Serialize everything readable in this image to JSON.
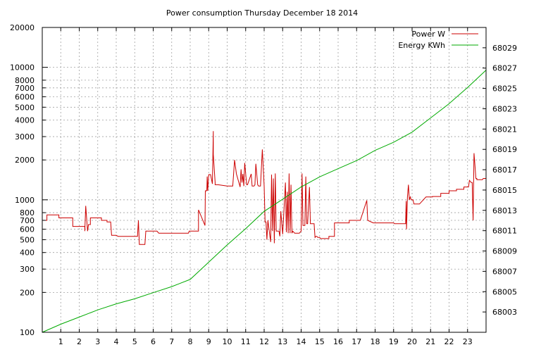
{
  "chart_data": {
    "type": "line",
    "title": "Power consumption Thursday December 18 2014",
    "xlabel": "",
    "ylabel": "",
    "xlim": [
      0,
      24
    ],
    "ylim": [
      100,
      20000
    ],
    "y_scale": "log",
    "y2lim": [
      68001,
      68031
    ],
    "grid": true,
    "legend_position": "top-right",
    "x_ticks": [
      1,
      2,
      3,
      4,
      5,
      6,
      7,
      8,
      9,
      10,
      11,
      12,
      13,
      14,
      15,
      16,
      17,
      18,
      19,
      20,
      21,
      22,
      23
    ],
    "x_tick_labels": [
      "1",
      "2",
      "3",
      "4",
      "5",
      "6",
      "7",
      "8",
      "9",
      "10",
      "11",
      "12",
      "13",
      "14",
      "15",
      "16",
      "17",
      "18",
      "19",
      "20",
      "21",
      "22",
      "23"
    ],
    "y_ticks": [
      100,
      200,
      300,
      400,
      500,
      600,
      700,
      800,
      1000,
      2000,
      3000,
      4000,
      5000,
      6000,
      7000,
      8000,
      10000,
      20000
    ],
    "y_tick_labels": [
      "100",
      "200",
      "300",
      "400",
      "500",
      "600",
      "700",
      "800",
      "1000",
      "2000",
      "3000",
      "4000",
      "5000",
      "6000",
      "7000",
      "8000",
      "10000",
      "20000"
    ],
    "y2_ticks": [
      68003,
      68005,
      68007,
      68009,
      68011,
      68013,
      68015,
      68017,
      68019,
      68021,
      68023,
      68025,
      68027,
      68029
    ],
    "y2_tick_labels": [
      "68003",
      "68005",
      "68007",
      "68009",
      "68011",
      "68013",
      "68015",
      "68017",
      "68019",
      "68021",
      "68023",
      "68025",
      "68027",
      "68029"
    ],
    "series": [
      {
        "name": "Power W",
        "axis": "y1",
        "color": "#cc0000",
        "step": true,
        "x": [
          0,
          0.25,
          0.25,
          0.9,
          0.9,
          1.65,
          1.65,
          2.3,
          2.3,
          2.35,
          2.45,
          2.5,
          2.6,
          2.6,
          2.65,
          2.7,
          3.2,
          3.2,
          3.5,
          3.5,
          3.7,
          3.75,
          3.75,
          4.0,
          4.0,
          4.1,
          4.2,
          5.15,
          5.2,
          5.25,
          5.55,
          5.6,
          6.2,
          6.3,
          6.3,
          7.0,
          7.0,
          7.05,
          7.9,
          7.95,
          7.95,
          8.0,
          8.05,
          8.1,
          8.35,
          8.4,
          8.45,
          8.45,
          8.8,
          8.82,
          8.86,
          8.9,
          8.92,
          8.95,
          9.0,
          9.1,
          9.2,
          9.25,
          9.25,
          9.35,
          9.35,
          9.5,
          9.5,
          10.0,
          10.3,
          10.3,
          10.4,
          10.5,
          10.5,
          10.7,
          10.7,
          10.75,
          10.8,
          10.85,
          10.9,
          10.95,
          11.0,
          11.05,
          11.1,
          11.3,
          11.35,
          11.45,
          11.5,
          11.55,
          11.65,
          11.7,
          11.8,
          11.9,
          12.0,
          12.05,
          12.08,
          12.1,
          12.15,
          12.2,
          12.35,
          12.4,
          12.45,
          12.5,
          12.55,
          12.6,
          12.65,
          12.7,
          12.75,
          12.8,
          12.85,
          12.9,
          13.0,
          13.15,
          13.2,
          13.25,
          13.3,
          13.35,
          13.4,
          13.45,
          13.5,
          13.55,
          13.6,
          13.65,
          13.7,
          13.75,
          13.8,
          13.85,
          13.9,
          14.0,
          14.05,
          14.1,
          14.2,
          14.25,
          14.3,
          14.35,
          14.45,
          14.5,
          14.6,
          14.7,
          14.75,
          14.8,
          14.85,
          14.9,
          15.0,
          15.05,
          15.35,
          15.4,
          15.5,
          15.5,
          15.8,
          15.8,
          16.6,
          16.6,
          17.2,
          17.2,
          17.55,
          17.6,
          17.9,
          17.95,
          18.0,
          18.05,
          18.1,
          19.0,
          19.05,
          19.65,
          19.68,
          19.7,
          19.75,
          19.8,
          19.85,
          19.9,
          19.95,
          20.0,
          20.05,
          20.1,
          20.4,
          20.4,
          20.75,
          21.1,
          21.1,
          21.55,
          21.55,
          22.0,
          22.0,
          22.4,
          22.4,
          22.8,
          22.8,
          23.05,
          23.1,
          23.2,
          23.25,
          23.3,
          23.35,
          23.4,
          23.45,
          23.5,
          23.5,
          23.8,
          23.85,
          24.0
        ],
        "values": [
          700,
          700,
          770,
          770,
          730,
          730,
          630,
          630,
          580,
          900,
          580,
          650,
          650,
          730,
          730,
          730,
          730,
          700,
          700,
          680,
          680,
          540,
          540,
          540,
          540,
          530,
          530,
          530,
          700,
          460,
          460,
          580,
          580,
          560,
          560,
          560,
          560,
          560,
          560,
          580,
          580,
          580,
          580,
          580,
          580,
          580,
          580,
          840,
          640,
          1170,
          1170,
          1170,
          1500,
          1170,
          1550,
          1550,
          1320,
          3300,
          2200,
          1350,
          1300,
          1300,
          1300,
          1270,
          1270,
          1270,
          2000,
          1570,
          1570,
          1250,
          1250,
          1700,
          1350,
          1570,
          1270,
          1900,
          1570,
          1300,
          1300,
          1570,
          1270,
          1270,
          1300,
          1870,
          1300,
          1270,
          1270,
          2400,
          1270,
          680,
          680,
          680,
          500,
          700,
          480,
          1550,
          580,
          1450,
          470,
          1580,
          580,
          580,
          580,
          580,
          530,
          820,
          550,
          1350,
          570,
          1150,
          560,
          1580,
          560,
          1300,
          560,
          580,
          570,
          560,
          560,
          560,
          560,
          560,
          560,
          580,
          1580,
          640,
          640,
          1500,
          660,
          660,
          1250,
          660,
          660,
          660,
          520,
          530,
          530,
          520,
          520,
          510,
          510,
          510,
          510,
          530,
          530,
          670,
          670,
          700,
          700,
          700,
          990,
          700,
          670,
          670,
          670,
          670,
          670,
          670,
          660,
          660,
          980,
          600,
          1050,
          1300,
          1000,
          1050,
          1000,
          1000,
          1000,
          930,
          930,
          930,
          1050,
          1050,
          1060,
          1060,
          1120,
          1120,
          1170,
          1170,
          1200,
          1200,
          1250,
          1250,
          1400,
          1350,
          1350,
          700,
          2250,
          1800,
          1450,
          1450,
          1420,
          1420,
          1450,
          1450
        ]
      },
      {
        "name": "Energy KWh",
        "axis": "y2",
        "color": "#00aa00",
        "step": false,
        "x": [
          0,
          1,
          2,
          3,
          4,
          5,
          6,
          7,
          8,
          9,
          10,
          11,
          12,
          13,
          14,
          15,
          16,
          17,
          18,
          19,
          20,
          21,
          22,
          23,
          24
        ],
        "values": [
          68001.0,
          68001.8,
          68002.5,
          68003.2,
          68003.8,
          68004.3,
          68004.9,
          68005.5,
          68006.2,
          68007.9,
          68009.6,
          68011.2,
          68012.9,
          68014.1,
          68015.3,
          68016.3,
          68017.1,
          68017.9,
          68018.9,
          68019.7,
          68020.7,
          68022.1,
          68023.5,
          68025.1,
          68026.8
        ]
      }
    ]
  }
}
